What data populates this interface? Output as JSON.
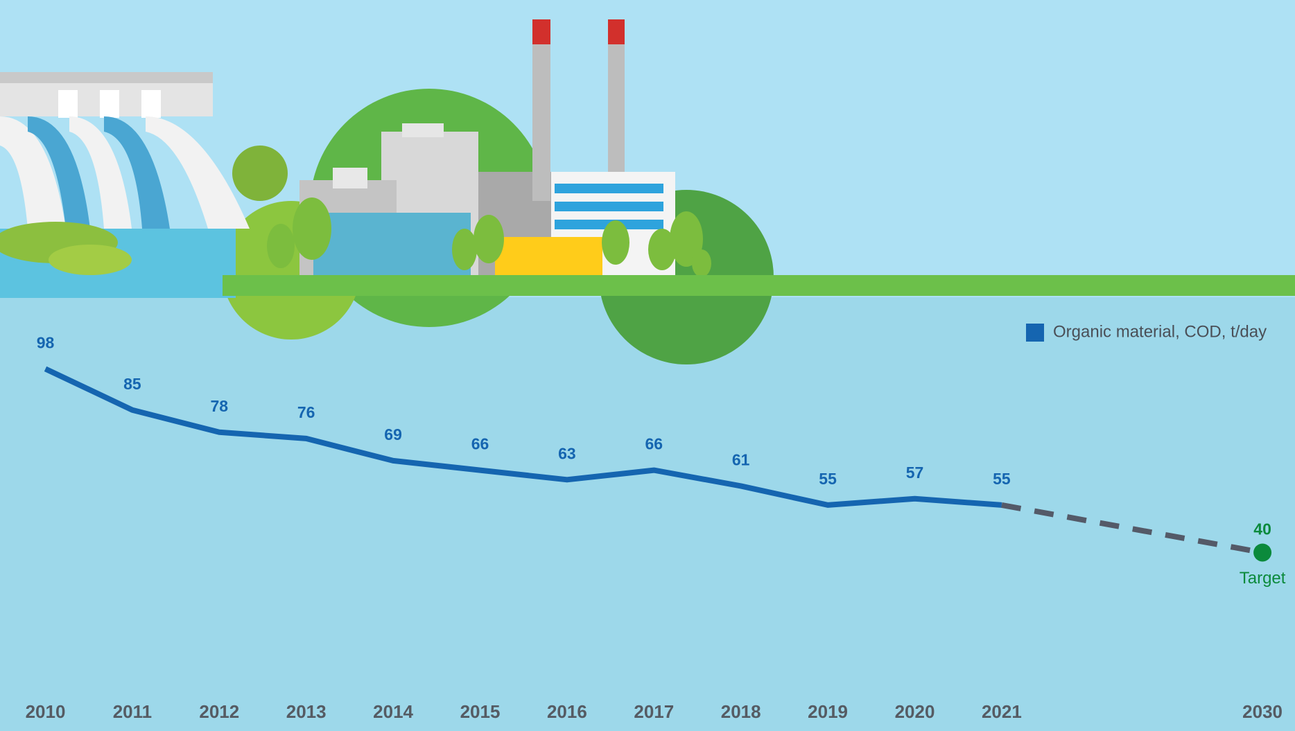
{
  "chart_data": {
    "type": "line",
    "categories": [
      "2010",
      "2011",
      "2012",
      "2013",
      "2014",
      "2015",
      "2016",
      "2017",
      "2018",
      "2019",
      "2020",
      "2021",
      null,
      null,
      "2030"
    ],
    "series": [
      {
        "name": "Organic material, COD, t/day",
        "color": "#1565b0",
        "values": [
          98,
          85,
          78,
          76,
          69,
          66,
          63,
          66,
          61,
          55,
          57,
          55,
          null,
          null,
          null
        ]
      },
      {
        "color": "#545a68",
        "dashed": true,
        "marker_color": "#0b8a3c",
        "values": [
          null,
          null,
          null,
          null,
          null,
          null,
          null,
          null,
          null,
          null,
          null,
          55,
          null,
          null,
          40
        ]
      }
    ],
    "annotations": [
      "Target"
    ],
    "ylim": [
      0,
      100
    ],
    "legend": "top-right"
  }
}
